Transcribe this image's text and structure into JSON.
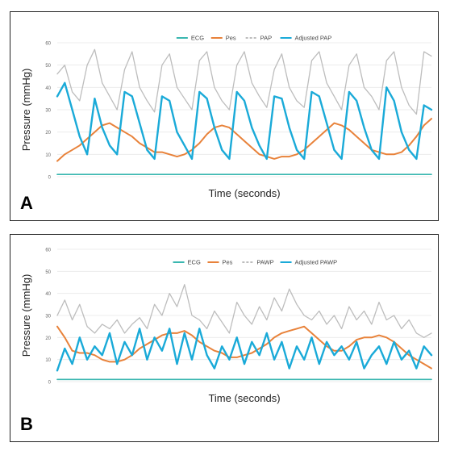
{
  "panels": [
    {
      "label": "A",
      "chart_data": {
        "type": "line",
        "title": "",
        "xlabel": "Time (seconds)",
        "ylabel": "Pressure (mmHg)",
        "ylim": [
          0,
          60
        ],
        "yticks": [
          0,
          10,
          20,
          30,
          40,
          50,
          60
        ],
        "xlim": [
          0,
          100
        ],
        "grid": true,
        "legend_position": "top",
        "series": [
          {
            "name": "ECG",
            "color": "#3ab7b0",
            "x": [
              0,
              100
            ],
            "y": [
              1,
              1
            ]
          },
          {
            "name": "Pes",
            "color": "#e8823a",
            "x": [
              0,
              2,
              4,
              6,
              8,
              10,
              12,
              14,
              16,
              18,
              20,
              22,
              24,
              26,
              28,
              30,
              32,
              34,
              36,
              38,
              40,
              42,
              44,
              46,
              48,
              50,
              52,
              54,
              56,
              58,
              60,
              62,
              64,
              66,
              68,
              70,
              72,
              74,
              76,
              78,
              80,
              82,
              84,
              86,
              88,
              90,
              92,
              94,
              96,
              98,
              100
            ],
            "y": [
              7,
              10,
              12,
              14,
              17,
              20,
              23,
              24,
              22,
              20,
              18,
              15,
              13,
              11,
              11,
              10,
              9,
              10,
              12,
              15,
              19,
              22,
              23,
              22,
              19,
              16,
              13,
              10,
              9,
              8,
              9,
              9,
              10,
              12,
              15,
              18,
              21,
              24,
              23,
              21,
              18,
              15,
              12,
              11,
              10,
              10,
              11,
              14,
              18,
              23,
              26
            ]
          },
          {
            "name": "PAP",
            "color": "#bdbdbd",
            "x": [
              0,
              2,
              4,
              6,
              8,
              10,
              12,
              14,
              16,
              18,
              20,
              22,
              24,
              26,
              28,
              30,
              32,
              34,
              36,
              38,
              40,
              42,
              44,
              46,
              48,
              50,
              52,
              54,
              56,
              58,
              60,
              62,
              64,
              66,
              68,
              70,
              72,
              74,
              76,
              78,
              80,
              82,
              84,
              86,
              88,
              90,
              92,
              94,
              96,
              98,
              100
            ],
            "y": [
              46,
              50,
              38,
              34,
              50,
              57,
              42,
              36,
              30,
              48,
              56,
              40,
              34,
              29,
              50,
              55,
              40,
              35,
              30,
              52,
              56,
              40,
              34,
              30,
              50,
              56,
              42,
              36,
              31,
              48,
              55,
              40,
              34,
              31,
              52,
              56,
              42,
              36,
              30,
              50,
              55,
              40,
              36,
              30,
              52,
              56,
              40,
              32,
              28,
              56,
              54
            ]
          },
          {
            "name": "Adjusted PAP",
            "color": "#1aaad8",
            "x": [
              0,
              2,
              4,
              6,
              8,
              10,
              12,
              14,
              16,
              18,
              20,
              22,
              24,
              26,
              28,
              30,
              32,
              34,
              36,
              38,
              40,
              42,
              44,
              46,
              48,
              50,
              52,
              54,
              56,
              58,
              60,
              62,
              64,
              66,
              68,
              70,
              72,
              74,
              76,
              78,
              80,
              82,
              84,
              86,
              88,
              90,
              92,
              94,
              96,
              98,
              100
            ],
            "y": [
              36,
              42,
              30,
              18,
              10,
              35,
              22,
              14,
              10,
              38,
              36,
              24,
              12,
              8,
              36,
              34,
              20,
              14,
              8,
              38,
              35,
              22,
              12,
              8,
              38,
              34,
              22,
              14,
              8,
              36,
              35,
              22,
              12,
              8,
              38,
              36,
              24,
              12,
              8,
              38,
              34,
              22,
              12,
              8,
              40,
              34,
              20,
              12,
              8,
              32,
              30
            ]
          }
        ]
      }
    },
    {
      "label": "B",
      "chart_data": {
        "type": "line",
        "title": "",
        "xlabel": "Time (seconds)",
        "ylabel": "Pressure (mmHg)",
        "ylim": [
          0,
          60
        ],
        "yticks": [
          0,
          10,
          20,
          30,
          40,
          50,
          60
        ],
        "xlim": [
          0,
          100
        ],
        "grid": true,
        "legend_position": "top",
        "series": [
          {
            "name": "ECG",
            "color": "#3ab7b0",
            "x": [
              0,
              100
            ],
            "y": [
              1,
              1
            ]
          },
          {
            "name": "Pes",
            "color": "#e8823a",
            "x": [
              0,
              2,
              4,
              6,
              8,
              10,
              12,
              14,
              16,
              18,
              20,
              22,
              24,
              26,
              28,
              30,
              32,
              34,
              36,
              38,
              40,
              42,
              44,
              46,
              48,
              50,
              52,
              54,
              56,
              58,
              60,
              62,
              64,
              66,
              68,
              70,
              72,
              74,
              76,
              78,
              80,
              82,
              84,
              86,
              88,
              90,
              92,
              94,
              96,
              98,
              100
            ],
            "y": [
              25,
              20,
              14,
              13,
              13,
              12,
              10,
              9,
              9,
              10,
              12,
              15,
              17,
              19,
              21,
              22,
              22,
              23,
              21,
              18,
              16,
              14,
              13,
              11,
              11,
              12,
              13,
              15,
              17,
              20,
              22,
              23,
              24,
              25,
              22,
              19,
              16,
              14,
              14,
              16,
              19,
              20,
              20,
              21,
              20,
              18,
              15,
              12,
              10,
              8,
              6
            ]
          },
          {
            "name": "PAWP",
            "color": "#bdbdbd",
            "x": [
              0,
              2,
              4,
              6,
              8,
              10,
              12,
              14,
              16,
              18,
              20,
              22,
              24,
              26,
              28,
              30,
              32,
              34,
              36,
              38,
              40,
              42,
              44,
              46,
              48,
              50,
              52,
              54,
              56,
              58,
              60,
              62,
              64,
              66,
              68,
              70,
              72,
              74,
              76,
              78,
              80,
              82,
              84,
              86,
              88,
              90,
              92,
              94,
              96,
              98,
              100
            ],
            "y": [
              30,
              37,
              28,
              35,
              25,
              22,
              26,
              24,
              28,
              22,
              26,
              29,
              24,
              35,
              30,
              40,
              34,
              44,
              30,
              28,
              24,
              32,
              27,
              22,
              36,
              30,
              26,
              34,
              28,
              38,
              32,
              42,
              35,
              30,
              28,
              32,
              26,
              30,
              24,
              34,
              28,
              32,
              26,
              36,
              28,
              30,
              24,
              28,
              22,
              20,
              22
            ]
          },
          {
            "name": "Adjusted PAWP",
            "color": "#1aaad8",
            "x": [
              0,
              2,
              4,
              6,
              8,
              10,
              12,
              14,
              16,
              18,
              20,
              22,
              24,
              26,
              28,
              30,
              32,
              34,
              36,
              38,
              40,
              42,
              44,
              46,
              48,
              50,
              52,
              54,
              56,
              58,
              60,
              62,
              64,
              66,
              68,
              70,
              72,
              74,
              76,
              78,
              80,
              82,
              84,
              86,
              88,
              90,
              92,
              94,
              96,
              98,
              100
            ],
            "y": [
              5,
              15,
              8,
              20,
              10,
              16,
              12,
              22,
              8,
              18,
              12,
              24,
              10,
              20,
              14,
              24,
              8,
              22,
              10,
              24,
              12,
              6,
              16,
              10,
              20,
              8,
              18,
              12,
              22,
              10,
              18,
              6,
              16,
              10,
              20,
              8,
              18,
              12,
              16,
              10,
              18,
              6,
              12,
              16,
              8,
              18,
              10,
              14,
              6,
              16,
              12
            ]
          }
        ]
      }
    }
  ]
}
